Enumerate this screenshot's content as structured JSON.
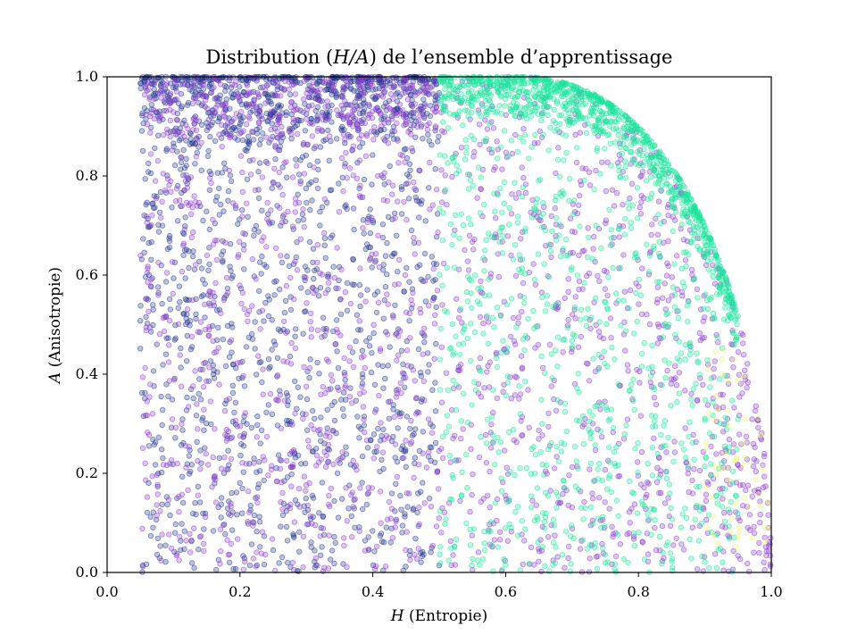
{
  "chart_data": {
    "type": "scatter",
    "title": {
      "before": "Distribution (",
      "math": "H/A",
      "after": ") de l’ensemble d’apprentissage"
    },
    "xlabel": {
      "symbol": "H",
      "text": "(Entropie)"
    },
    "ylabel": {
      "symbol": "A",
      "text": "(Anisotropie)"
    },
    "xlim": [
      0.0,
      1.0
    ],
    "ylim": [
      0.0,
      1.0
    ],
    "xticks": [
      "0.0",
      "0.2",
      "0.4",
      "0.6",
      "0.8",
      "1.0"
    ],
    "yticks": [
      "0.0",
      "0.2",
      "0.4",
      "0.6",
      "0.8",
      "1.0"
    ],
    "grid": false,
    "legend": "none",
    "series": [
      {
        "color": "#24358f",
        "approx_count": 1700,
        "region": "H 0.05–0.5, A 0–1, dense near A=1"
      },
      {
        "color": "#8c3dcc",
        "approx_count": 1900,
        "region": "H 0.05–1.0, A 0–1"
      },
      {
        "color": "#19e39a",
        "approx_count": 1700,
        "region": "H 0.5–0.95, dense along H² + A² ≈ 1 boundary"
      },
      {
        "color": "#ecf47a",
        "approx_count": 60,
        "region": "H 0.9–1.0, A 0.1–0.4"
      }
    ],
    "boundary": "A ≤ sqrt(1 − (H/1.0)^k) envelope from (0.62, 1.0) to (1.0, 0.0)"
  }
}
